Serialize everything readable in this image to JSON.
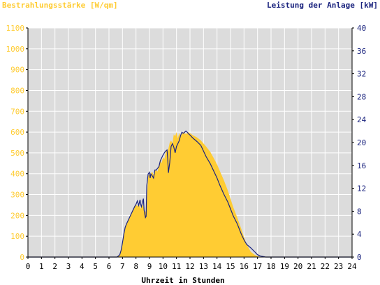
{
  "chart_data": {
    "type": "area",
    "title_left": "Bestrahlungsstärke [W/qm]",
    "title_right": "Leistung der Anlage [kW]",
    "xlabel": "Uhrzeit in Stunden",
    "x_ticks": [
      "0",
      "1",
      "2",
      "3",
      "4",
      "5",
      "6",
      "7",
      "8",
      "9",
      "10",
      "11",
      "12",
      "13",
      "14",
      "15",
      "16",
      "17",
      "18",
      "19",
      "20",
      "21",
      "22",
      "23",
      "24"
    ],
    "y_left_ticks": [
      "0",
      "100",
      "200",
      "300",
      "400",
      "500",
      "600",
      "700",
      "800",
      "900",
      "1000",
      "1100"
    ],
    "y_right_ticks": [
      "0",
      "4",
      "8",
      "12",
      "16",
      "20",
      "24",
      "28",
      "32",
      "36",
      "40"
    ],
    "xlim": [
      0,
      24
    ],
    "y_left_lim": [
      0,
      1100
    ],
    "y_right_lim": [
      0,
      40
    ],
    "grid": true,
    "colors": {
      "plot_background": "#dcdcdc",
      "grid": "#ffffff",
      "irradiance_fill": "#ffcc33",
      "power_line": "#1a237e",
      "left_axis_text": "#ffcc33",
      "right_axis_text": "#1a237e",
      "x_axis_text": "#000000"
    },
    "series": [
      {
        "kind": "area",
        "axis": "left",
        "x": [
          0,
          6.6,
          6.8,
          6.9,
          7.0,
          7.1,
          7.2,
          7.3,
          7.4,
          7.5,
          7.6,
          7.7,
          7.8,
          7.9,
          8.0,
          8.1,
          8.2,
          8.3,
          8.35,
          8.4,
          8.5,
          8.55,
          8.6,
          8.7,
          8.75,
          8.8,
          8.9,
          9.0,
          9.05,
          9.1,
          9.2,
          9.3,
          9.4,
          9.5,
          9.6,
          9.7,
          9.8,
          9.9,
          10.0,
          10.1,
          10.2,
          10.3,
          10.35,
          10.4,
          10.5,
          10.6,
          10.7,
          10.8,
          10.9,
          11.0,
          11.1,
          11.2,
          11.3,
          11.4,
          11.5,
          11.6,
          11.7,
          11.8,
          11.9,
          12.0,
          12.2,
          12.5,
          12.8,
          13.0,
          13.2,
          13.5,
          13.8,
          14.0,
          14.2,
          14.5,
          14.8,
          15.0,
          15.2,
          15.5,
          15.8,
          16.0,
          16.2,
          16.5,
          16.8,
          17.0,
          17.2,
          17.4,
          17.6,
          17.8,
          18.0,
          18.2,
          24
        ],
        "values": [
          0,
          0,
          10,
          30,
          70,
          110,
          140,
          160,
          175,
          185,
          200,
          215,
          230,
          240,
          250,
          245,
          255,
          240,
          230,
          245,
          250,
          240,
          230,
          215,
          225,
          260,
          390,
          395,
          380,
          400,
          410,
          395,
          410,
          420,
          410,
          440,
          470,
          450,
          480,
          470,
          500,
          520,
          510,
          520,
          550,
          560,
          545,
          590,
          580,
          600,
          570,
          595,
          580,
          590,
          600,
          595,
          590,
          595,
          600,
          595,
          585,
          575,
          560,
          545,
          530,
          505,
          470,
          445,
          415,
          370,
          320,
          280,
          240,
          190,
          135,
          95,
          60,
          25,
          10,
          5,
          0,
          0,
          0,
          0,
          0,
          0,
          0
        ]
      },
      {
        "kind": "line",
        "axis": "right",
        "x": [
          0,
          6.6,
          6.8,
          6.9,
          7.0,
          7.1,
          7.2,
          7.3,
          7.4,
          7.5,
          7.6,
          7.7,
          7.8,
          7.9,
          8.0,
          8.1,
          8.2,
          8.3,
          8.35,
          8.4,
          8.5,
          8.55,
          8.6,
          8.7,
          8.75,
          8.8,
          8.9,
          9.0,
          9.05,
          9.1,
          9.2,
          9.3,
          9.4,
          9.5,
          9.6,
          9.7,
          9.8,
          9.9,
          10.0,
          10.1,
          10.2,
          10.3,
          10.35,
          10.4,
          10.5,
          10.6,
          10.7,
          10.8,
          10.9,
          11.0,
          11.1,
          11.2,
          11.3,
          11.4,
          11.5,
          11.6,
          11.7,
          11.8,
          11.9,
          12.0,
          12.2,
          12.5,
          12.8,
          13.0,
          13.2,
          13.5,
          13.8,
          14.0,
          14.2,
          14.5,
          14.8,
          15.0,
          15.2,
          15.5,
          15.8,
          16.0,
          16.2,
          16.5,
          16.8,
          17.0,
          17.2,
          17.4,
          17.6,
          17.8,
          18.0,
          18.2,
          24
        ],
        "values": [
          0,
          0,
          0.4,
          1.2,
          2.5,
          4.0,
          5.2,
          5.8,
          6.3,
          6.8,
          7.3,
          7.8,
          8.3,
          8.8,
          9.2,
          9.8,
          9.0,
          10.0,
          9.2,
          8.8,
          9.8,
          10.2,
          8.2,
          6.9,
          7.1,
          12.5,
          14.5,
          14.8,
          13.8,
          14.5,
          14.2,
          13.8,
          15.2,
          15.2,
          15.5,
          15.8,
          16.8,
          17.3,
          17.8,
          18.2,
          18.5,
          18.7,
          17.2,
          14.7,
          16.5,
          19.3,
          19.8,
          19.2,
          18.2,
          19.3,
          19.8,
          20.3,
          21.2,
          21.8,
          21.6,
          21.8,
          22.0,
          21.8,
          21.5,
          21.3,
          20.8,
          20.2,
          19.5,
          18.5,
          17.5,
          16.3,
          14.8,
          13.8,
          12.6,
          11.0,
          9.6,
          8.4,
          7.2,
          5.8,
          4.0,
          3.0,
          2.2,
          1.6,
          0.9,
          0.4,
          0.2,
          0.1,
          0,
          0,
          0,
          0,
          0
        ]
      }
    ]
  }
}
